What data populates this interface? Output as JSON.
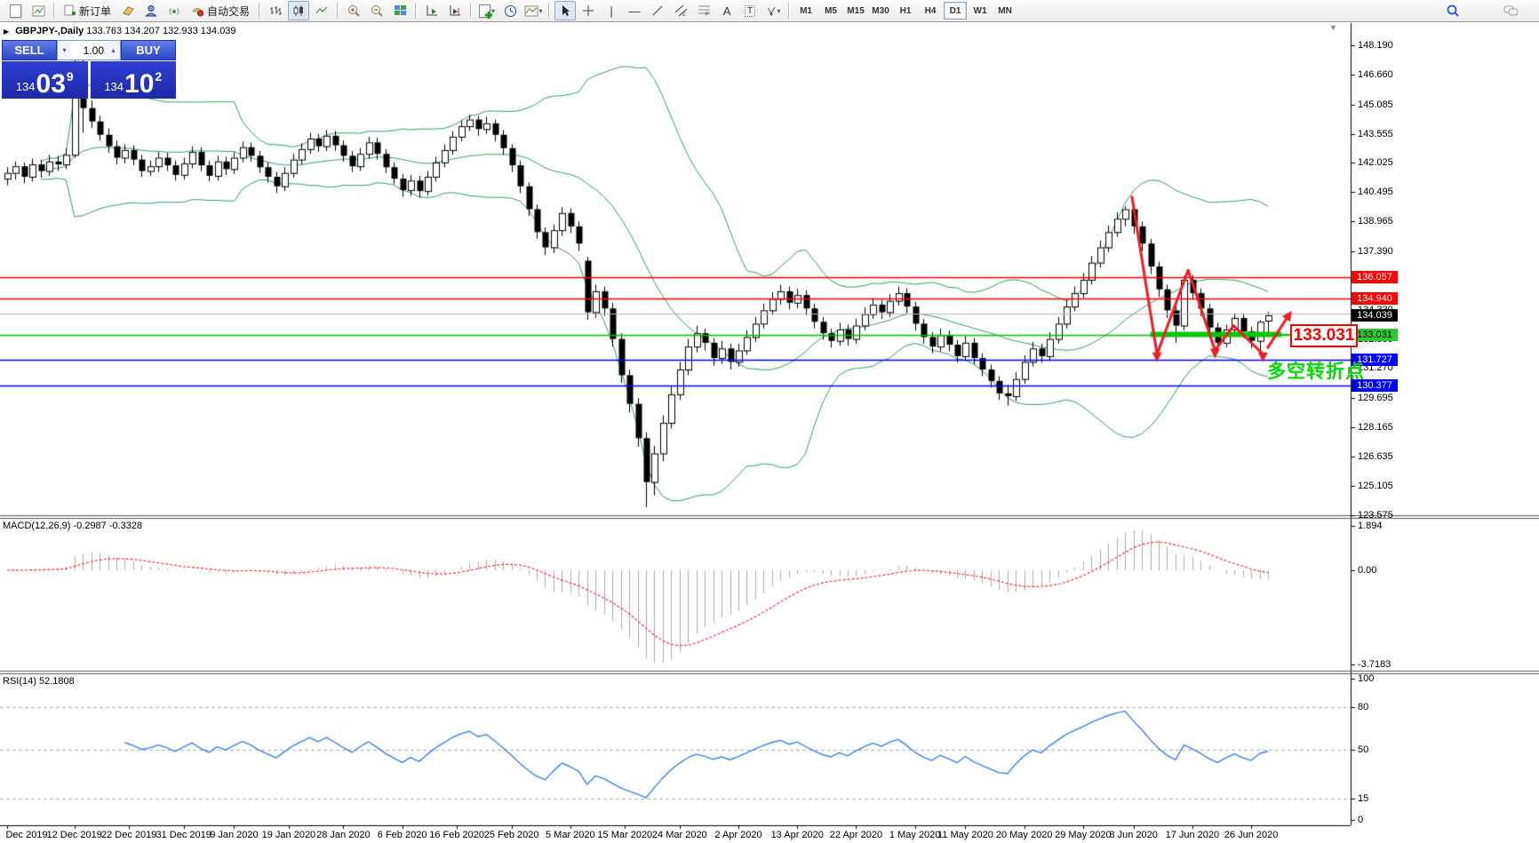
{
  "toolbar": {
    "buttons": {
      "new_order": "新订单",
      "auto_trading": "自动交易"
    },
    "drawing_labels": {
      "text_a": "A",
      "text_label": "T"
    },
    "timeframes": [
      "M1",
      "M5",
      "M15",
      "M30",
      "H1",
      "H4",
      "D1",
      "W1",
      "MN"
    ],
    "active_timeframe": "D1"
  },
  "chart_header": {
    "title": "GBPJPY-,Daily",
    "ohlc": "133.763 134.207 132.933 134.039"
  },
  "trade_panel": {
    "sell_label": "SELL",
    "buy_label": "BUY",
    "volume": "1.00",
    "sell_price": {
      "small": "134",
      "big": "03",
      "sup": "9"
    },
    "buy_price": {
      "small": "134",
      "big": "10",
      "sup": "2"
    }
  },
  "price_axis": {
    "tick_labels": [
      "148.190",
      "146.660",
      "145.085",
      "143.555",
      "142.025",
      "140.495",
      "138.965",
      "137.390",
      "135.860",
      "134.330",
      "132.800",
      "131.270",
      "129.695",
      "128.165",
      "126.635",
      "125.105",
      "123.575"
    ],
    "badges": [
      {
        "label": "136.057",
        "bg": "#ff0000",
        "fg": "#ffffff"
      },
      {
        "label": "134.940",
        "bg": "#ff0000",
        "fg": "#ffffff"
      },
      {
        "label": "134.039",
        "bg": "#000000",
        "fg": "#ffffff"
      },
      {
        "label": "133.031",
        "bg": "#2fc832",
        "fg": "#000000"
      },
      {
        "label": "131.727",
        "bg": "#0000ff",
        "fg": "#ffffff"
      },
      {
        "label": "130.377",
        "bg": "#0000ff",
        "fg": "#ffffff"
      }
    ]
  },
  "macd_panel": {
    "label": "MACD(12,26,9)",
    "values": "-0.2987 -0.3328",
    "axis_labels": [
      "1.894",
      "0.00",
      "-3.7183"
    ]
  },
  "rsi_panel": {
    "label": "RSI(14)",
    "value": "52.1808",
    "axis_labels": [
      "100",
      "80",
      "50",
      "15",
      "0"
    ],
    "levels": [
      80,
      50,
      15
    ]
  },
  "date_axis": {
    "labels": [
      "Dec 2019",
      "12 Dec 2019",
      "22 Dec 2019",
      "31 Dec 2019",
      "9 Jan 2020",
      "19 Jan 2020",
      "28 Jan 2020",
      "6 Feb 2020",
      "16 Feb 2020",
      "25 Feb 2020",
      "5 Mar 2020",
      "15 Mar 2020",
      "24 Mar 2020",
      "2 Apr 2020",
      "13 Apr 2020",
      "22 Apr 2020",
      "1 May 2020",
      "11 May 2020",
      "20 May 2020",
      "29 May 2020",
      "8 Jun 2020",
      "17 Jun 2020",
      "26 Jun 2020"
    ],
    "bar_index": [
      0,
      8,
      14.5,
      21,
      27,
      33.5,
      40,
      47,
      53.5,
      60,
      67,
      73.5,
      80,
      87,
      94,
      101,
      108,
      114,
      121,
      128,
      134,
      141,
      148
    ]
  },
  "annotations": {
    "price_flag": "133.031",
    "cn_text": "多空转折点",
    "green_segment": {
      "from_bar": 136,
      "to_bar": 151.6,
      "price": 133.031,
      "color": "#0ac60a"
    },
    "zigzag": [
      [
        133.8,
        140.3
      ],
      [
        136.8,
        132.0
      ],
      [
        140.5,
        136.4
      ],
      [
        143.7,
        132.2
      ],
      [
        145.9,
        133.5
      ],
      [
        149.4,
        132.0
      ]
    ],
    "zigzag_arrow_points": [
      1,
      3,
      5
    ],
    "up_arrow": [
      [
        149.9,
        132.3
      ],
      [
        152.4,
        134.0
      ]
    ],
    "zigzag_color": "#ee1c25",
    "level_lines": [
      {
        "price": 136.057,
        "color": "#ff0000"
      },
      {
        "price": 134.94,
        "color": "#ff0000"
      },
      {
        "price": 133.031,
        "color": "#00c000"
      },
      {
        "price": 131.727,
        "color": "#0000ff"
      },
      {
        "price": 130.377,
        "color": "#0000ff"
      }
    ],
    "bid_line": {
      "price": 134.039,
      "color": "#b8b8b8"
    }
  },
  "chart_data": {
    "type": "candlestick",
    "symbol": "GBPJPY",
    "timeframe": "Daily",
    "title": "GBPJPY-,Daily",
    "last_bar": {
      "open": 133.763,
      "high": 134.207,
      "low": 132.933,
      "close": 134.039
    },
    "indicators": [
      "Bollinger Bands(20,2)",
      "MACD(12,26,9)",
      "RSI(14)"
    ],
    "y_range": [
      123.575,
      148.19
    ],
    "macd_range": [
      -3.7183,
      1.894
    ],
    "rsi_range": [
      0,
      100
    ],
    "candles": [
      [
        141.2,
        141.8,
        140.85,
        141.5
      ],
      [
        141.5,
        142.1,
        141.15,
        141.85
      ],
      [
        141.85,
        142.05,
        140.95,
        141.3
      ],
      [
        141.3,
        142.25,
        141.05,
        141.95
      ],
      [
        141.95,
        142.2,
        141.25,
        141.6
      ],
      [
        141.6,
        142.45,
        141.35,
        142.1
      ],
      [
        142.1,
        142.4,
        141.6,
        141.95
      ],
      [
        141.95,
        142.8,
        141.7,
        142.45
      ],
      [
        142.45,
        147.5,
        142.3,
        146.8
      ],
      [
        146.8,
        147.95,
        143.6,
        144.9
      ],
      [
        144.9,
        145.3,
        143.85,
        144.2
      ],
      [
        144.2,
        144.5,
        143.2,
        143.5
      ],
      [
        143.5,
        143.85,
        142.55,
        142.9
      ],
      [
        142.9,
        143.2,
        141.95,
        142.3
      ],
      [
        142.3,
        143.0,
        142.0,
        142.7
      ],
      [
        142.7,
        142.95,
        141.9,
        142.2
      ],
      [
        142.2,
        142.45,
        141.3,
        141.6
      ],
      [
        141.6,
        142.15,
        141.35,
        141.85
      ],
      [
        141.85,
        142.6,
        141.55,
        142.3
      ],
      [
        142.3,
        142.55,
        141.6,
        141.9
      ],
      [
        141.9,
        142.15,
        141.1,
        141.4
      ],
      [
        141.4,
        142.3,
        141.15,
        142.0
      ],
      [
        142.0,
        142.9,
        141.75,
        142.6
      ],
      [
        142.6,
        142.85,
        141.6,
        141.9
      ],
      [
        141.9,
        142.15,
        141.05,
        141.35
      ],
      [
        141.35,
        142.4,
        141.1,
        142.1
      ],
      [
        142.1,
        142.35,
        141.4,
        141.7
      ],
      [
        141.7,
        142.6,
        141.45,
        142.3
      ],
      [
        142.3,
        143.15,
        142.05,
        142.85
      ],
      [
        142.85,
        143.1,
        142.1,
        142.4
      ],
      [
        142.4,
        142.65,
        141.5,
        141.8
      ],
      [
        141.8,
        142.05,
        141.0,
        141.3
      ],
      [
        141.3,
        141.55,
        140.45,
        140.8
      ],
      [
        140.8,
        141.8,
        140.55,
        141.5
      ],
      [
        141.5,
        142.5,
        141.25,
        142.2
      ],
      [
        142.2,
        143.05,
        141.95,
        142.75
      ],
      [
        142.75,
        143.6,
        142.5,
        143.3
      ],
      [
        143.3,
        143.55,
        142.6,
        142.9
      ],
      [
        142.9,
        143.75,
        142.65,
        143.45
      ],
      [
        143.45,
        143.7,
        142.65,
        142.95
      ],
      [
        142.95,
        143.2,
        142.1,
        142.4
      ],
      [
        142.4,
        142.65,
        141.55,
        141.85
      ],
      [
        141.85,
        142.8,
        141.6,
        142.5
      ],
      [
        142.5,
        143.4,
        142.25,
        143.1
      ],
      [
        143.1,
        143.35,
        142.2,
        142.5
      ],
      [
        142.5,
        142.75,
        141.5,
        141.8
      ],
      [
        141.8,
        142.05,
        140.9,
        141.2
      ],
      [
        141.2,
        141.45,
        140.25,
        140.6
      ],
      [
        140.6,
        141.4,
        140.3,
        141.1
      ],
      [
        141.1,
        141.35,
        140.2,
        140.55
      ],
      [
        140.55,
        141.6,
        140.3,
        141.3
      ],
      [
        141.3,
        142.35,
        141.05,
        142.05
      ],
      [
        142.05,
        143.0,
        141.8,
        142.7
      ],
      [
        142.7,
        143.7,
        142.45,
        143.4
      ],
      [
        143.4,
        144.25,
        143.15,
        143.95
      ],
      [
        143.95,
        144.55,
        143.7,
        144.3
      ],
      [
        144.3,
        144.5,
        143.45,
        143.8
      ],
      [
        143.8,
        144.45,
        143.55,
        144.1
      ],
      [
        144.1,
        144.3,
        143.15,
        143.5
      ],
      [
        143.5,
        143.75,
        142.45,
        142.8
      ],
      [
        142.8,
        143.0,
        141.55,
        141.9
      ],
      [
        141.9,
        142.15,
        140.45,
        140.8
      ],
      [
        140.8,
        141.0,
        139.25,
        139.6
      ],
      [
        139.6,
        139.85,
        138.05,
        138.4
      ],
      [
        138.4,
        138.65,
        137.2,
        137.6
      ],
      [
        137.6,
        138.8,
        137.3,
        138.5
      ],
      [
        138.5,
        139.7,
        138.2,
        139.4
      ],
      [
        139.4,
        139.65,
        138.35,
        138.7
      ],
      [
        138.7,
        138.95,
        137.4,
        137.8
      ],
      [
        136.9,
        137.1,
        133.8,
        134.2
      ],
      [
        134.2,
        135.65,
        133.9,
        135.3
      ],
      [
        135.3,
        135.55,
        134.0,
        134.4
      ],
      [
        134.4,
        134.7,
        132.4,
        132.8
      ],
      [
        132.8,
        133.1,
        130.5,
        130.9
      ],
      [
        130.9,
        131.2,
        128.95,
        129.4
      ],
      [
        129.4,
        129.7,
        127.15,
        127.6
      ],
      [
        127.6,
        127.9,
        123.98,
        125.3
      ],
      [
        125.3,
        127.2,
        124.6,
        126.8
      ],
      [
        126.8,
        128.8,
        126.4,
        128.4
      ],
      [
        128.4,
        130.3,
        128.1,
        129.9
      ],
      [
        129.9,
        131.6,
        129.6,
        131.2
      ],
      [
        131.2,
        132.8,
        130.9,
        132.4
      ],
      [
        132.4,
        133.5,
        132.1,
        133.1
      ],
      [
        133.1,
        133.35,
        132.2,
        132.6
      ],
      [
        132.6,
        132.85,
        131.4,
        131.8
      ],
      [
        131.8,
        132.7,
        131.5,
        132.3
      ],
      [
        132.3,
        132.55,
        131.2,
        131.6
      ],
      [
        131.6,
        132.55,
        131.35,
        132.2
      ],
      [
        132.2,
        133.25,
        131.95,
        132.9
      ],
      [
        132.9,
        133.95,
        132.65,
        133.6
      ],
      [
        133.6,
        134.65,
        133.35,
        134.3
      ],
      [
        134.3,
        135.25,
        134.05,
        134.9
      ],
      [
        134.9,
        135.65,
        134.6,
        135.3
      ],
      [
        135.3,
        135.55,
        134.35,
        134.7
      ],
      [
        134.7,
        135.45,
        134.4,
        135.1
      ],
      [
        135.1,
        135.35,
        134.05,
        134.4
      ],
      [
        134.4,
        134.65,
        133.35,
        133.7
      ],
      [
        133.7,
        133.95,
        132.75,
        133.1
      ],
      [
        133.1,
        133.35,
        132.35,
        132.7
      ],
      [
        132.7,
        133.65,
        132.45,
        133.3
      ],
      [
        133.3,
        133.55,
        132.45,
        132.8
      ],
      [
        132.8,
        133.85,
        132.55,
        133.5
      ],
      [
        133.5,
        134.45,
        133.25,
        134.1
      ],
      [
        134.1,
        134.95,
        133.85,
        134.6
      ],
      [
        134.6,
        134.85,
        133.85,
        134.2
      ],
      [
        134.2,
        135.15,
        133.95,
        134.8
      ],
      [
        134.8,
        135.55,
        134.55,
        135.2
      ],
      [
        135.2,
        135.45,
        134.15,
        134.5
      ],
      [
        134.5,
        134.75,
        133.25,
        133.6
      ],
      [
        133.6,
        133.85,
        132.55,
        132.9
      ],
      [
        132.9,
        133.15,
        132.05,
        132.4
      ],
      [
        132.4,
        133.35,
        132.15,
        133.0
      ],
      [
        133.0,
        133.25,
        132.15,
        132.5
      ],
      [
        132.5,
        132.75,
        131.55,
        131.9
      ],
      [
        131.9,
        132.95,
        131.65,
        132.6
      ],
      [
        132.6,
        132.85,
        131.45,
        131.8
      ],
      [
        131.8,
        132.05,
        130.85,
        131.2
      ],
      [
        131.2,
        131.45,
        130.25,
        130.6
      ],
      [
        130.6,
        130.85,
        129.6,
        129.95
      ],
      [
        129.95,
        130.4,
        129.3,
        129.8
      ],
      [
        129.8,
        131.05,
        129.55,
        130.7
      ],
      [
        130.7,
        131.95,
        130.45,
        131.6
      ],
      [
        131.6,
        132.65,
        131.35,
        132.3
      ],
      [
        132.3,
        132.55,
        131.55,
        131.9
      ],
      [
        131.9,
        133.15,
        131.65,
        132.8
      ],
      [
        132.8,
        133.95,
        132.55,
        133.6
      ],
      [
        133.6,
        134.85,
        133.35,
        134.5
      ],
      [
        134.5,
        135.55,
        134.25,
        135.2
      ],
      [
        135.2,
        136.25,
        134.95,
        135.9
      ],
      [
        135.9,
        137.15,
        135.65,
        136.8
      ],
      [
        136.8,
        137.95,
        136.55,
        137.6
      ],
      [
        137.6,
        138.75,
        137.35,
        138.4
      ],
      [
        138.4,
        139.45,
        138.15,
        139.1
      ],
      [
        139.1,
        139.75,
        138.7,
        139.6
      ],
      [
        139.6,
        139.7,
        138.3,
        138.7
      ],
      [
        138.7,
        138.95,
        137.4,
        137.8
      ],
      [
        137.8,
        138.05,
        136.2,
        136.6
      ],
      [
        136.6,
        136.85,
        135.0,
        135.4
      ],
      [
        135.4,
        135.65,
        133.9,
        134.3
      ],
      [
        134.3,
        134.55,
        132.6,
        133.5
      ],
      [
        133.5,
        136.1,
        133.25,
        135.9
      ],
      [
        135.9,
        136.15,
        134.85,
        135.2
      ],
      [
        135.2,
        135.45,
        134.0,
        134.4
      ],
      [
        134.4,
        134.65,
        133.0,
        133.4
      ],
      [
        133.4,
        133.65,
        132.15,
        132.6
      ],
      [
        132.6,
        133.55,
        132.35,
        133.3
      ],
      [
        133.3,
        134.15,
        133.05,
        133.9
      ],
      [
        133.9,
        134.15,
        132.85,
        133.2
      ],
      [
        133.2,
        133.45,
        132.3,
        132.7
      ],
      [
        132.7,
        133.8,
        131.96,
        133.7
      ],
      [
        133.76,
        134.21,
        132.93,
        134.04
      ]
    ]
  }
}
